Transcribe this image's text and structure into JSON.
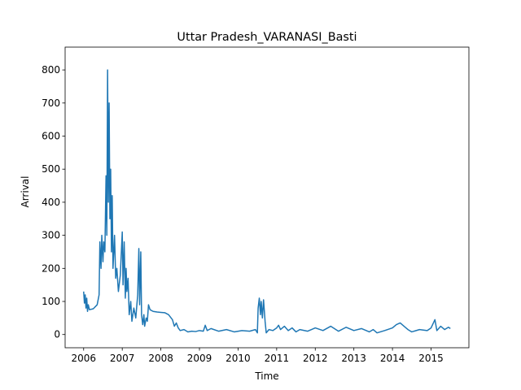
{
  "chart_data": {
    "type": "line",
    "title": "Uttar Pradesh_VARANASI_Basti",
    "x_label": "Time",
    "y_label": "Arrival",
    "color": "#1f77b4",
    "x": [
      2006.0,
      2006.02,
      2006.04,
      2006.06,
      2006.08,
      2006.1,
      2006.12,
      2006.15,
      2006.25,
      2006.35,
      2006.4,
      2006.42,
      2006.45,
      2006.47,
      2006.5,
      2006.52,
      2006.55,
      2006.58,
      2006.6,
      2006.62,
      2006.64,
      2006.66,
      2006.68,
      2006.7,
      2006.72,
      2006.74,
      2006.76,
      2006.8,
      2006.83,
      2006.86,
      2006.9,
      2006.95,
      2007.0,
      2007.02,
      2007.05,
      2007.08,
      2007.1,
      2007.12,
      2007.15,
      2007.18,
      2007.22,
      2007.25,
      2007.3,
      2007.35,
      2007.4,
      2007.43,
      2007.45,
      2007.48,
      2007.5,
      2007.53,
      2007.56,
      2007.58,
      2007.62,
      2007.65,
      2007.68,
      2007.72,
      2007.8,
      2007.9,
      2008.0,
      2008.1,
      2008.2,
      2008.3,
      2008.35,
      2008.4,
      2008.45,
      2008.5,
      2008.6,
      2008.7,
      2008.8,
      2008.9,
      2009.0,
      2009.1,
      2009.15,
      2009.2,
      2009.3,
      2009.5,
      2009.7,
      2009.9,
      2010.1,
      2010.3,
      2010.45,
      2010.5,
      2010.52,
      2010.55,
      2010.58,
      2010.6,
      2010.63,
      2010.66,
      2010.7,
      2010.73,
      2010.8,
      2010.9,
      2011.0,
      2011.05,
      2011.1,
      2011.2,
      2011.3,
      2011.4,
      2011.5,
      2011.6,
      2011.8,
      2012.0,
      2012.2,
      2012.4,
      2012.6,
      2012.8,
      2013.0,
      2013.2,
      2013.4,
      2013.5,
      2013.6,
      2013.8,
      2014.0,
      2014.1,
      2014.2,
      2014.3,
      2014.4,
      2014.5,
      2014.7,
      2014.9,
      2015.0,
      2015.1,
      2015.15,
      2015.25,
      2015.35,
      2015.45,
      2015.5
    ],
    "values": [
      130,
      95,
      120,
      80,
      110,
      70,
      90,
      75,
      78,
      90,
      120,
      280,
      200,
      300,
      220,
      280,
      250,
      480,
      300,
      800,
      400,
      700,
      350,
      500,
      250,
      420,
      200,
      300,
      170,
      200,
      130,
      180,
      310,
      150,
      280,
      110,
      200,
      130,
      170,
      60,
      100,
      40,
      80,
      50,
      120,
      260,
      90,
      250,
      60,
      30,
      60,
      25,
      50,
      40,
      90,
      75,
      70,
      68,
      67,
      66,
      60,
      45,
      25,
      35,
      20,
      12,
      15,
      8,
      10,
      9,
      12,
      10,
      28,
      12,
      18,
      10,
      15,
      8,
      12,
      10,
      15,
      5,
      80,
      110,
      60,
      100,
      50,
      105,
      40,
      5,
      15,
      12,
      20,
      28,
      15,
      25,
      12,
      20,
      8,
      15,
      10,
      20,
      12,
      25,
      10,
      22,
      12,
      18,
      8,
      15,
      5,
      12,
      20,
      30,
      35,
      25,
      15,
      8,
      15,
      12,
      20,
      45,
      12,
      25,
      15,
      22,
      18
    ],
    "xlim": [
      2005.52,
      2015.98
    ],
    "ylim": [
      -40,
      869
    ],
    "xticks": [
      2006,
      2007,
      2008,
      2009,
      2010,
      2011,
      2012,
      2013,
      2014,
      2015
    ],
    "yticks": [
      0,
      100,
      200,
      300,
      400,
      500,
      600,
      700,
      800
    ]
  }
}
